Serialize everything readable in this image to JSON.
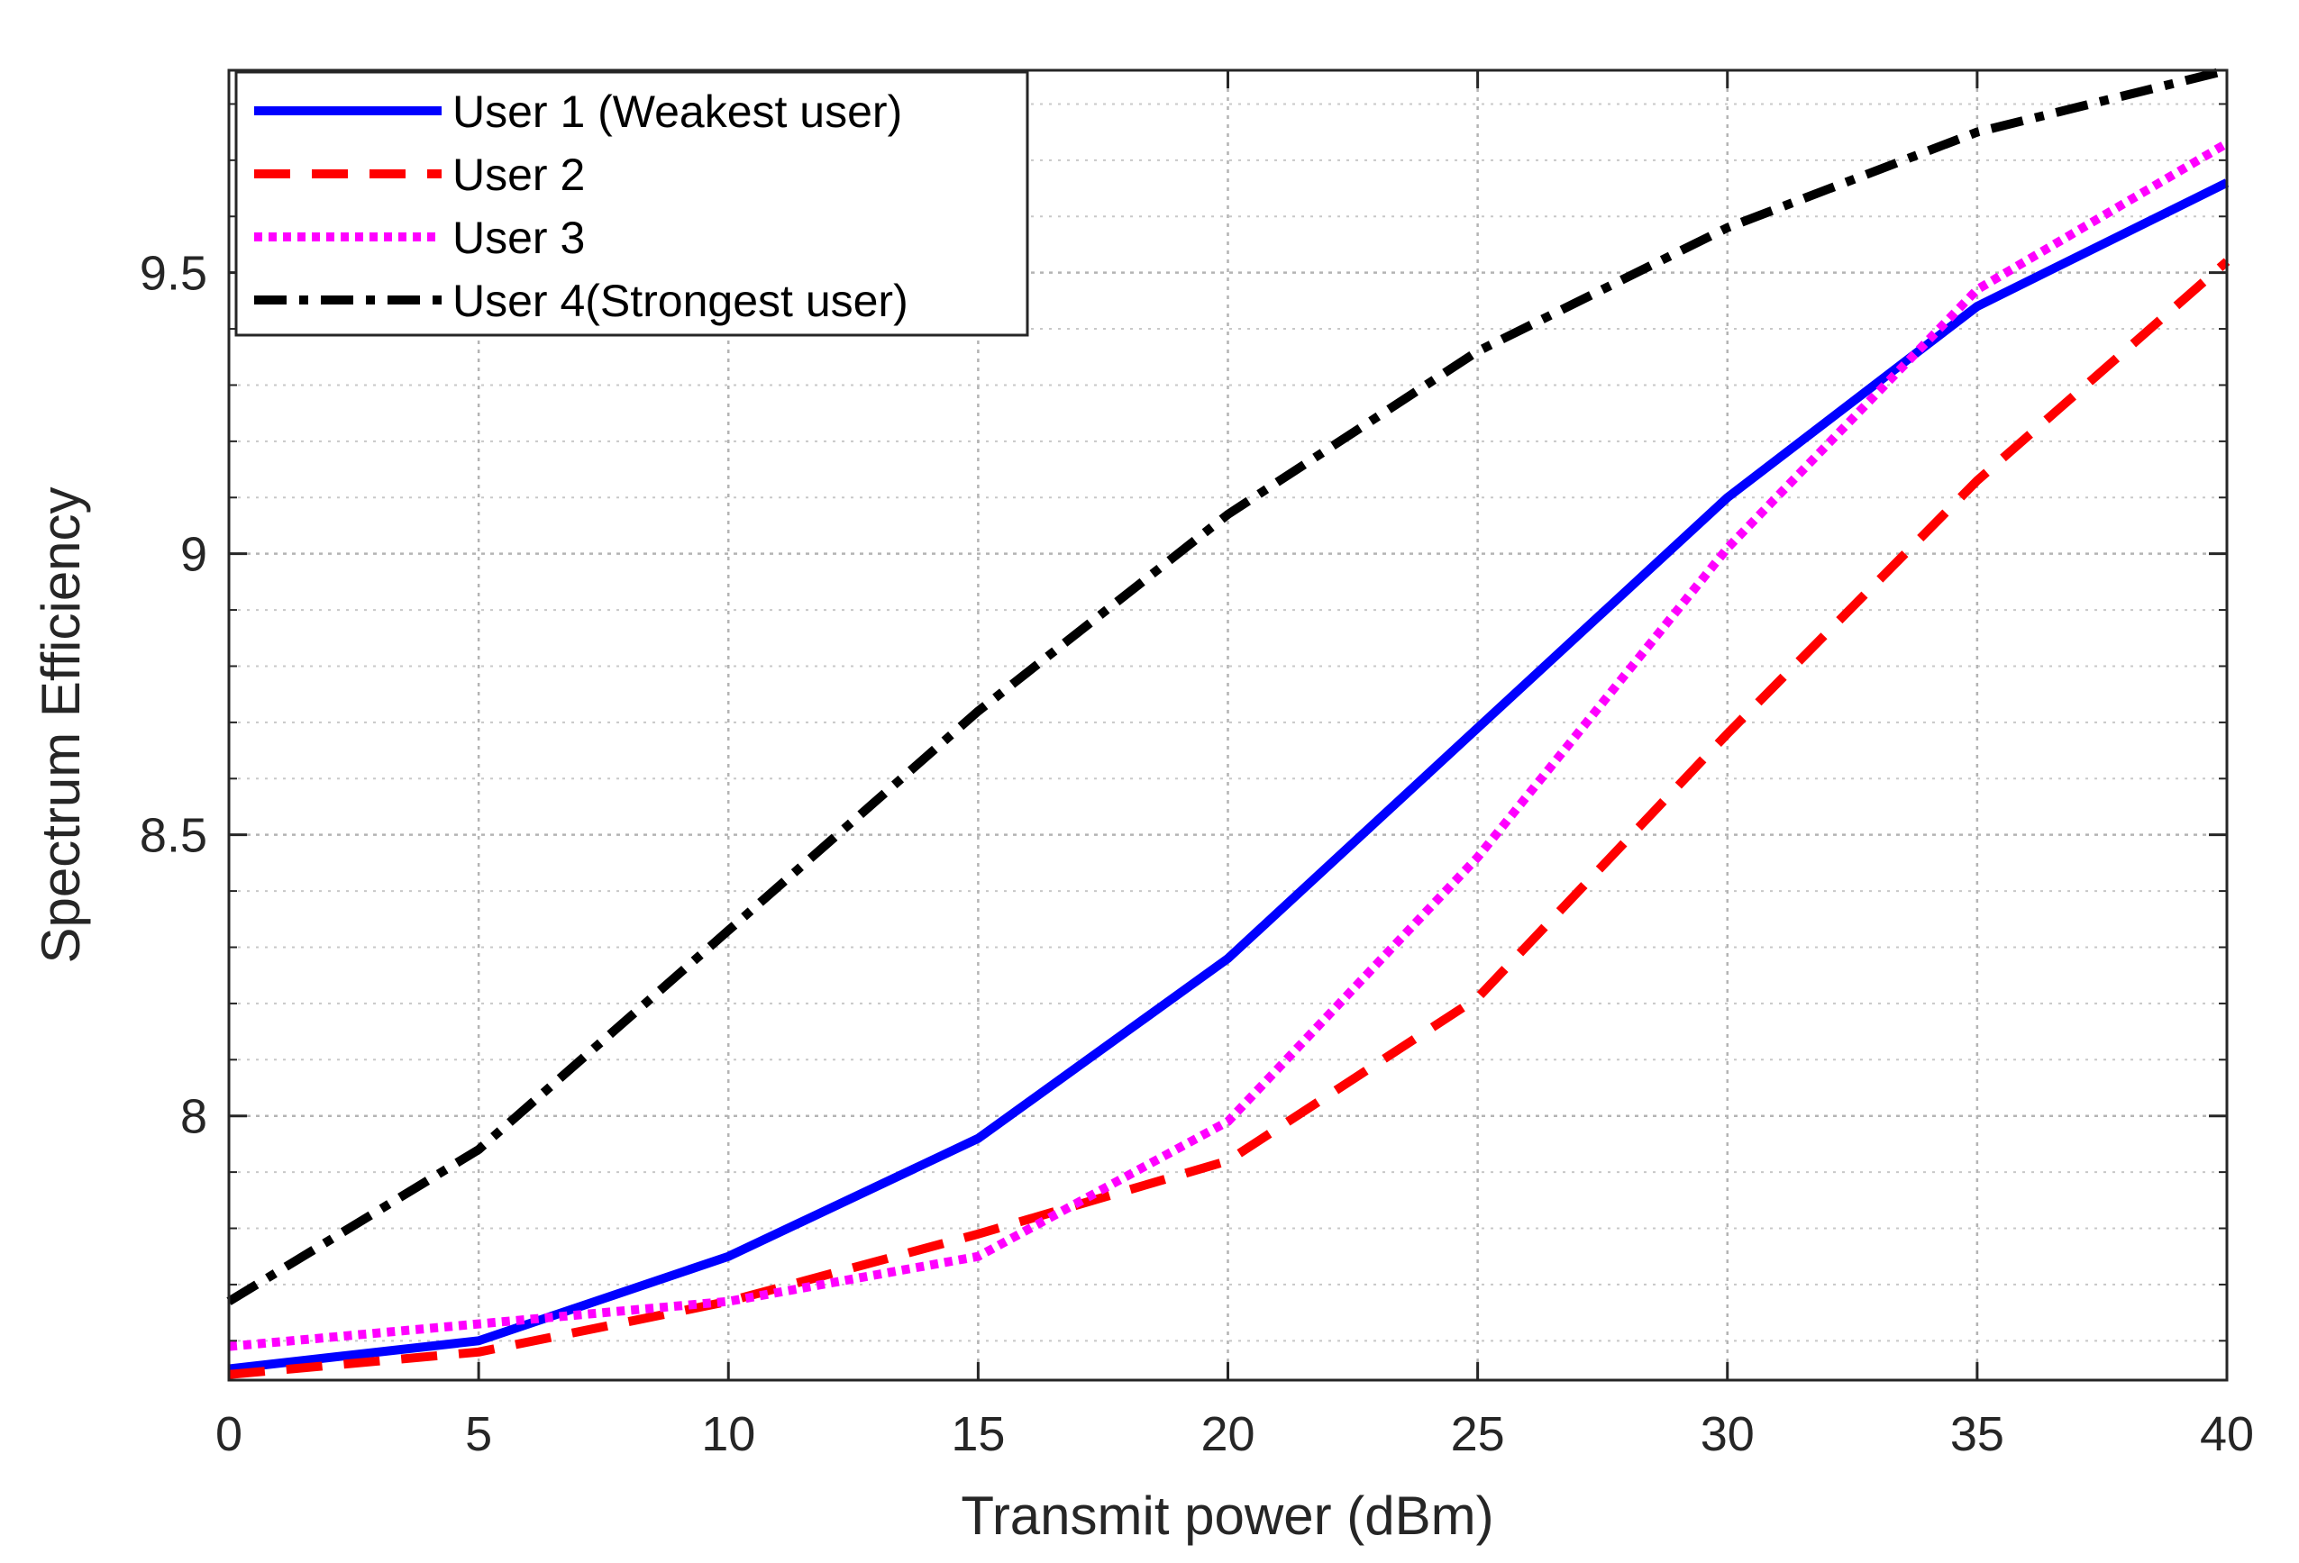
{
  "chart_data": {
    "type": "line",
    "title": "",
    "xlabel": "Transmit power (dBm)",
    "ylabel": "Spectrum Efficiency",
    "xlim": [
      0,
      40
    ],
    "ylim": [
      7.53,
      9.86
    ],
    "xticks": [
      0,
      5,
      10,
      15,
      20,
      25,
      30,
      35,
      40
    ],
    "xtick_labels": [
      "0",
      "5",
      "10",
      "15",
      "20",
      "25",
      "30",
      "35",
      "40"
    ],
    "yticks": [
      8,
      8.5,
      9,
      9.5
    ],
    "ytick_labels": [
      "8",
      "8.5",
      "9",
      "9.5"
    ],
    "grid": true,
    "legend_position": "top-left",
    "x": [
      0,
      5,
      10,
      15,
      20,
      25,
      30,
      35,
      40
    ],
    "series": [
      {
        "name": "User 1 (Weakest user)",
        "values": [
          7.55,
          7.6,
          7.75,
          7.96,
          8.28,
          8.69,
          9.1,
          9.44,
          9.66
        ],
        "color": "#0000ff",
        "style": "solid"
      },
      {
        "name": "User 2",
        "values": [
          7.54,
          7.58,
          7.67,
          7.79,
          7.92,
          8.21,
          8.68,
          9.13,
          9.52
        ],
        "color": "#ff0000",
        "style": "dashed"
      },
      {
        "name": "User 3",
        "values": [
          7.59,
          7.63,
          7.67,
          7.75,
          7.99,
          8.46,
          9.01,
          9.47,
          9.73
        ],
        "color": "#ff00ff",
        "style": "dotted"
      },
      {
        "name": "User 4(Strongest user)",
        "values": [
          7.67,
          7.94,
          8.33,
          8.72,
          9.07,
          9.36,
          9.58,
          9.75,
          9.86
        ],
        "color": "#000000",
        "style": "dashdot"
      }
    ]
  }
}
